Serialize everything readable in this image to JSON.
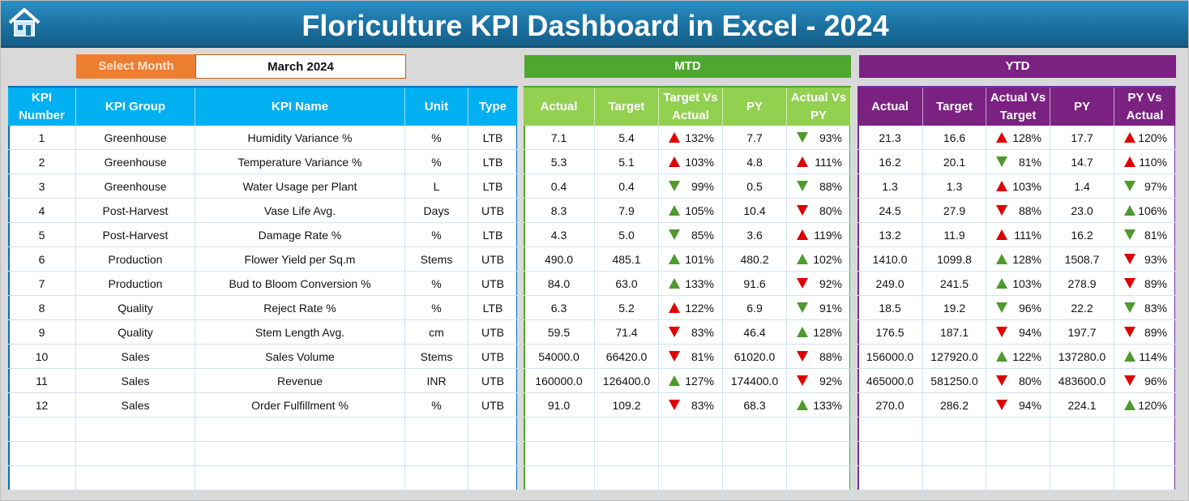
{
  "header": {
    "title": "Floriculture KPI Dashboard in Excel - 2024"
  },
  "selector": {
    "label": "Select Month",
    "value": "March 2024"
  },
  "sections": {
    "mtd": "MTD",
    "ytd": "YTD"
  },
  "lower_is_better": "LTB",
  "arrow_colors": {
    "good": "#4e9a2e",
    "bad": "#e00000"
  },
  "kpi_table": {
    "columns": [
      "KPI Number",
      "KPI Group",
      "KPI Name",
      "Unit",
      "Type"
    ],
    "rows": [
      [
        "1",
        "Greenhouse",
        "Humidity Variance %",
        "%",
        "LTB"
      ],
      [
        "2",
        "Greenhouse",
        "Temperature Variance %",
        "%",
        "LTB"
      ],
      [
        "3",
        "Greenhouse",
        "Water Usage per Plant",
        "L",
        "LTB"
      ],
      [
        "4",
        "Post-Harvest",
        "Vase Life Avg.",
        "Days",
        "UTB"
      ],
      [
        "5",
        "Post-Harvest",
        "Damage Rate %",
        "%",
        "LTB"
      ],
      [
        "6",
        "Production",
        "Flower Yield per Sq.m",
        "Stems",
        "UTB"
      ],
      [
        "7",
        "Production",
        "Bud to Bloom Conversion %",
        "%",
        "UTB"
      ],
      [
        "8",
        "Quality",
        "Reject Rate %",
        "%",
        "LTB"
      ],
      [
        "9",
        "Quality",
        "Stem Length Avg.",
        "cm",
        "UTB"
      ],
      [
        "10",
        "Sales",
        "Sales Volume",
        "Stems",
        "UTB"
      ],
      [
        "11",
        "Sales",
        "Revenue",
        "INR",
        "UTB"
      ],
      [
        "12",
        "Sales",
        "Order Fulfillment %",
        "%",
        "UTB"
      ]
    ]
  },
  "mtd_table": {
    "columns": [
      "Actual",
      "Target",
      "Target Vs Actual",
      "PY",
      "Actual Vs PY"
    ],
    "rows": [
      [
        "7.1",
        "5.4",
        "132%",
        "7.7",
        "93%"
      ],
      [
        "5.3",
        "5.1",
        "103%",
        "4.8",
        "111%"
      ],
      [
        "0.4",
        "0.4",
        "99%",
        "0.5",
        "88%"
      ],
      [
        "8.3",
        "7.9",
        "105%",
        "10.4",
        "80%"
      ],
      [
        "4.3",
        "5.0",
        "85%",
        "3.6",
        "119%"
      ],
      [
        "490.0",
        "485.1",
        "101%",
        "480.2",
        "102%"
      ],
      [
        "84.0",
        "63.0",
        "133%",
        "91.6",
        "92%"
      ],
      [
        "6.3",
        "5.2",
        "122%",
        "6.9",
        "91%"
      ],
      [
        "59.5",
        "71.4",
        "83%",
        "46.4",
        "128%"
      ],
      [
        "54000.0",
        "66420.0",
        "81%",
        "61020.0",
        "88%"
      ],
      [
        "160000.0",
        "126400.0",
        "127%",
        "174400.0",
        "92%"
      ],
      [
        "91.0",
        "109.2",
        "83%",
        "68.3",
        "133%"
      ]
    ]
  },
  "ytd_table": {
    "columns": [
      "Actual",
      "Target",
      "Actual Vs Target",
      "PY",
      "PY Vs Actual"
    ],
    "rows": [
      [
        "21.3",
        "16.6",
        "128%",
        "17.7",
        "120%"
      ],
      [
        "16.2",
        "20.1",
        "81%",
        "14.7",
        "110%"
      ],
      [
        "1.3",
        "1.3",
        "103%",
        "1.4",
        "97%"
      ],
      [
        "24.5",
        "27.9",
        "88%",
        "23.0",
        "106%"
      ],
      [
        "13.2",
        "11.9",
        "111%",
        "16.2",
        "81%"
      ],
      [
        "1410.0",
        "1099.8",
        "128%",
        "1508.7",
        "93%"
      ],
      [
        "249.0",
        "241.5",
        "103%",
        "278.9",
        "89%"
      ],
      [
        "18.5",
        "19.2",
        "96%",
        "22.2",
        "83%"
      ],
      [
        "176.5",
        "187.1",
        "94%",
        "197.7",
        "89%"
      ],
      [
        "156000.0",
        "127920.0",
        "122%",
        "137280.0",
        "114%"
      ],
      [
        "465000.0",
        "581250.0",
        "80%",
        "483600.0",
        "96%"
      ],
      [
        "270.0",
        "286.2",
        "94%",
        "224.1",
        "120%"
      ]
    ]
  }
}
